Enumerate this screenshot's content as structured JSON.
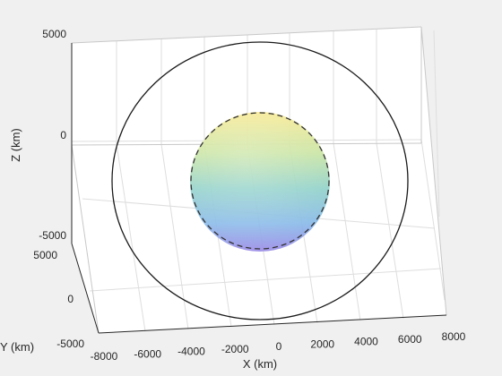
{
  "chart_data": {
    "type": "3d-line-surface",
    "title": "",
    "xlabel": "X (km)",
    "ylabel": "Y (km)",
    "zlabel": "Z (km)",
    "x_ticks": [
      "-8000",
      "-6000",
      "-4000",
      "-2000",
      "0",
      "2000",
      "4000",
      "6000",
      "8000"
    ],
    "y_ticks": [
      "-5000",
      "0",
      "5000"
    ],
    "z_ticks": [
      "-5000",
      "0",
      "5000"
    ],
    "xlim": [
      -8000,
      8000
    ],
    "ylim": [
      -6000,
      6000
    ],
    "zlim": [
      -6000,
      6000
    ],
    "grid": true,
    "series": [
      {
        "kind": "orbit",
        "style": "solid",
        "color": "#000000",
        "radius_km": 7000
      },
      {
        "kind": "orbit",
        "style": "dashed",
        "color": "#000000",
        "radius_km": 3200
      },
      {
        "kind": "sphere-surface",
        "colormap": [
          "#f8e88c",
          "#c6e3a0",
          "#8ed0c8",
          "#86b8e8",
          "#9a8ae6"
        ],
        "radius_km": 3200
      }
    ]
  },
  "colors": {
    "background": "#f0f0f0",
    "plot_face": "#ffffff",
    "grid": "#dedede"
  }
}
